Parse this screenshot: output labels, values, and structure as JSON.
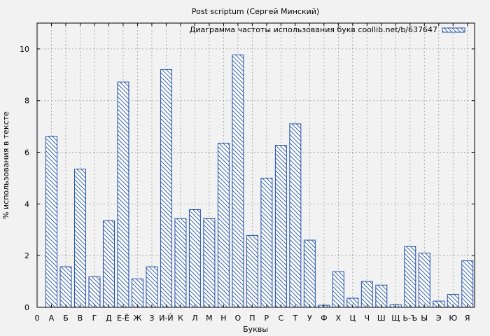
{
  "chart_data": {
    "type": "bar",
    "title": "Post scriptum (Сергей Минский)",
    "xlabel": "Буквы",
    "ylabel": "% использования в тексте",
    "ylim": [
      0,
      11
    ],
    "yticks": [
      0,
      2,
      4,
      6,
      8,
      10
    ],
    "grid": true,
    "legend_position": "top-right",
    "x_start_label": "0",
    "categories": [
      "А",
      "Б",
      "В",
      "Г",
      "Д",
      "Е-Ё",
      "Ж",
      "З",
      "И-Й",
      "К",
      "Л",
      "М",
      "Н",
      "О",
      "П",
      "Р",
      "С",
      "Т",
      "У",
      "Ф",
      "Х",
      "Ц",
      "Ч",
      "Ш",
      "Щ",
      "Ь-Ъ",
      "Ы",
      "Э",
      "Ю",
      "Я"
    ],
    "series": [
      {
        "name": "Диаграмма частоты использования букв coollib.net/b/637647",
        "color": "#1f4fa8",
        "values": [
          6.62,
          1.57,
          5.35,
          1.18,
          3.35,
          8.72,
          1.1,
          1.57,
          9.2,
          3.43,
          3.78,
          3.43,
          6.35,
          9.77,
          2.78,
          5.0,
          6.27,
          7.1,
          2.6,
          0.08,
          1.38,
          0.35,
          1.0,
          0.86,
          0.1,
          2.35,
          2.1,
          0.24,
          0.5,
          1.8
        ]
      }
    ]
  }
}
